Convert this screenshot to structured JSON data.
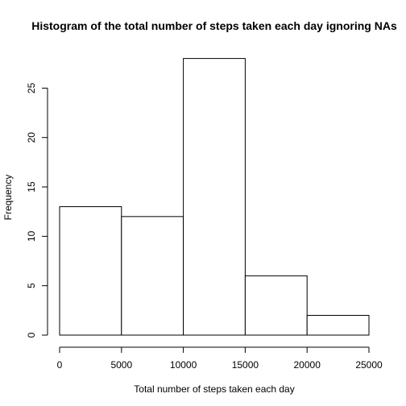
{
  "chart_data": {
    "type": "bar",
    "title": "Histogram of the total number of steps taken each day ignoring NAs",
    "xlabel": "Total number of steps taken each day",
    "ylabel": "Frequency",
    "bins": [
      {
        "from": 0,
        "to": 5000,
        "count": 13
      },
      {
        "from": 5000,
        "to": 10000,
        "count": 12
      },
      {
        "from": 10000,
        "to": 15000,
        "count": 28
      },
      {
        "from": 15000,
        "to": 20000,
        "count": 6
      },
      {
        "from": 20000,
        "to": 25000,
        "count": 2
      }
    ],
    "xlim": [
      0,
      25000
    ],
    "ylim": [
      0,
      28
    ],
    "x_ticks": [
      0,
      5000,
      10000,
      15000,
      20000,
      25000
    ],
    "y_ticks": [
      0,
      5,
      10,
      15,
      20,
      25
    ],
    "grid": false,
    "bar_fill": "#ffffff",
    "bar_stroke": "#000000"
  }
}
